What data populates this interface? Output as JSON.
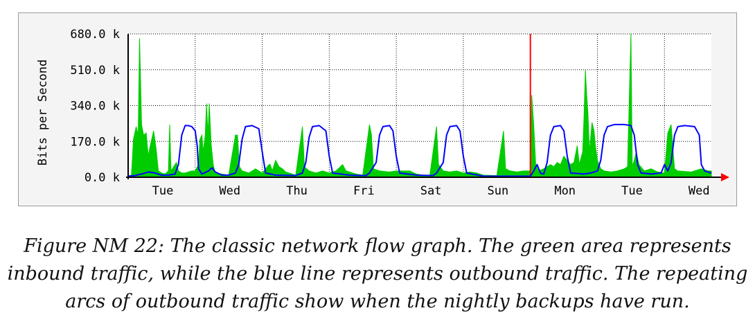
{
  "chart_data": {
    "type": "area",
    "title": "",
    "xlabel": "",
    "ylabel": "Bits per Second",
    "ylim": [
      0,
      680000
    ],
    "y_ticks": [
      {
        "value": 0,
        "label": "0.0 k"
      },
      {
        "value": 170000,
        "label": "170.0 k"
      },
      {
        "value": 340000,
        "label": "340.0 k"
      },
      {
        "value": 510000,
        "label": "510.0 k"
      },
      {
        "value": 680000,
        "label": "680.0 k"
      }
    ],
    "x_unit": "days",
    "xlim": [
      0,
      8.7
    ],
    "x_ticks": [
      "Tue",
      "Wed",
      "Thu",
      "Fri",
      "Sat",
      "Sun",
      "Mon",
      "Tue",
      "Wed"
    ],
    "grid": true,
    "marker_line": {
      "x": 6,
      "color": "#ff0000"
    },
    "series": [
      {
        "color": "#00cc00",
        "style": "area",
        "points": [
          [
            0.0,
            4000
          ],
          [
            0.05,
            10000
          ],
          [
            0.08,
            180000
          ],
          [
            0.12,
            240000
          ],
          [
            0.15,
            200000
          ],
          [
            0.17,
            660000
          ],
          [
            0.2,
            250000
          ],
          [
            0.23,
            200000
          ],
          [
            0.27,
            210000
          ],
          [
            0.3,
            100000
          ],
          [
            0.33,
            150000
          ],
          [
            0.38,
            220000
          ],
          [
            0.42,
            130000
          ],
          [
            0.45,
            30000
          ],
          [
            0.5,
            20000
          ],
          [
            0.55,
            15000
          ],
          [
            0.6,
            30000
          ],
          [
            0.62,
            250000
          ],
          [
            0.64,
            30000
          ],
          [
            0.7,
            60000
          ],
          [
            0.72,
            70000
          ],
          [
            0.75,
            30000
          ],
          [
            0.8,
            20000
          ],
          [
            0.85,
            20000
          ],
          [
            0.9,
            25000
          ],
          [
            0.95,
            30000
          ],
          [
            1.0,
            30000
          ],
          [
            1.05,
            60000
          ],
          [
            1.07,
            180000
          ],
          [
            1.1,
            200000
          ],
          [
            1.12,
            120000
          ],
          [
            1.15,
            200000
          ],
          [
            1.17,
            350000
          ],
          [
            1.19,
            200000
          ],
          [
            1.21,
            350000
          ],
          [
            1.24,
            150000
          ],
          [
            1.27,
            60000
          ],
          [
            1.3,
            20000
          ],
          [
            1.4,
            15000
          ],
          [
            1.5,
            10000
          ],
          [
            1.6,
            200000
          ],
          [
            1.63,
            200000
          ],
          [
            1.66,
            50000
          ],
          [
            1.7,
            30000
          ],
          [
            1.8,
            20000
          ],
          [
            1.9,
            40000
          ],
          [
            1.95,
            30000
          ],
          [
            2.0,
            20000
          ],
          [
            2.1,
            60000
          ],
          [
            2.12,
            60000
          ],
          [
            2.15,
            30000
          ],
          [
            2.2,
            80000
          ],
          [
            2.25,
            50000
          ],
          [
            2.3,
            40000
          ],
          [
            2.35,
            25000
          ],
          [
            2.5,
            10000
          ],
          [
            2.6,
            240000
          ],
          [
            2.63,
            50000
          ],
          [
            2.7,
            30000
          ],
          [
            2.8,
            20000
          ],
          [
            2.9,
            30000
          ],
          [
            3.0,
            20000
          ],
          [
            3.1,
            30000
          ],
          [
            3.2,
            60000
          ],
          [
            3.25,
            30000
          ],
          [
            3.4,
            15000
          ],
          [
            3.5,
            10000
          ],
          [
            3.6,
            250000
          ],
          [
            3.63,
            200000
          ],
          [
            3.66,
            40000
          ],
          [
            3.75,
            30000
          ],
          [
            3.9,
            25000
          ],
          [
            4.0,
            30000
          ],
          [
            4.1,
            30000
          ],
          [
            4.2,
            30000
          ],
          [
            4.3,
            15000
          ],
          [
            4.4,
            10000
          ],
          [
            4.5,
            8000
          ],
          [
            4.6,
            240000
          ],
          [
            4.63,
            60000
          ],
          [
            4.7,
            30000
          ],
          [
            4.8,
            25000
          ],
          [
            4.9,
            30000
          ],
          [
            5.0,
            20000
          ],
          [
            5.1,
            25000
          ],
          [
            5.2,
            20000
          ],
          [
            5.3,
            10000
          ],
          [
            5.5,
            8000
          ],
          [
            5.6,
            220000
          ],
          [
            5.63,
            40000
          ],
          [
            5.7,
            30000
          ],
          [
            5.8,
            25000
          ],
          [
            5.9,
            30000
          ],
          [
            6.0,
            30000
          ],
          [
            6.02,
            390000
          ],
          [
            6.05,
            250000
          ],
          [
            6.08,
            60000
          ],
          [
            6.12,
            30000
          ],
          [
            6.2,
            40000
          ],
          [
            6.3,
            60000
          ],
          [
            6.35,
            50000
          ],
          [
            6.4,
            70000
          ],
          [
            6.45,
            60000
          ],
          [
            6.5,
            100000
          ],
          [
            6.55,
            80000
          ],
          [
            6.6,
            60000
          ],
          [
            6.65,
            70000
          ],
          [
            6.7,
            150000
          ],
          [
            6.73,
            60000
          ],
          [
            6.78,
            120000
          ],
          [
            6.8,
            280000
          ],
          [
            6.82,
            510000
          ],
          [
            6.84,
            390000
          ],
          [
            6.86,
            300000
          ],
          [
            6.88,
            120000
          ],
          [
            6.92,
            260000
          ],
          [
            6.95,
            220000
          ],
          [
            6.97,
            150000
          ],
          [
            7.0,
            80000
          ],
          [
            7.05,
            40000
          ],
          [
            7.1,
            30000
          ],
          [
            7.2,
            25000
          ],
          [
            7.3,
            30000
          ],
          [
            7.4,
            40000
          ],
          [
            7.45,
            50000
          ],
          [
            7.5,
            680000
          ],
          [
            7.52,
            50000
          ],
          [
            7.55,
            80000
          ],
          [
            7.58,
            120000
          ],
          [
            7.62,
            60000
          ],
          [
            7.7,
            30000
          ],
          [
            7.8,
            40000
          ],
          [
            7.9,
            25000
          ],
          [
            8.0,
            20000
          ],
          [
            8.05,
            210000
          ],
          [
            8.1,
            250000
          ],
          [
            8.15,
            40000
          ],
          [
            8.2,
            30000
          ],
          [
            8.4,
            25000
          ],
          [
            8.55,
            40000
          ],
          [
            8.65,
            30000
          ],
          [
            8.7,
            30000
          ]
        ]
      },
      {
        "color": "#0000ff",
        "style": "line",
        "points": [
          [
            0.0,
            5000
          ],
          [
            0.1,
            8000
          ],
          [
            0.2,
            15000
          ],
          [
            0.3,
            25000
          ],
          [
            0.4,
            20000
          ],
          [
            0.5,
            10000
          ],
          [
            0.6,
            10000
          ],
          [
            0.7,
            15000
          ],
          [
            0.75,
            60000
          ],
          [
            0.8,
            200000
          ],
          [
            0.85,
            245000
          ],
          [
            0.9,
            245000
          ],
          [
            0.95,
            240000
          ],
          [
            1.0,
            220000
          ],
          [
            1.03,
            150000
          ],
          [
            1.05,
            40000
          ],
          [
            1.1,
            15000
          ],
          [
            1.2,
            30000
          ],
          [
            1.25,
            45000
          ],
          [
            1.3,
            25000
          ],
          [
            1.4,
            10000
          ],
          [
            1.5,
            10000
          ],
          [
            1.6,
            20000
          ],
          [
            1.65,
            60000
          ],
          [
            1.7,
            180000
          ],
          [
            1.75,
            240000
          ],
          [
            1.85,
            245000
          ],
          [
            1.95,
            230000
          ],
          [
            2.0,
            120000
          ],
          [
            2.05,
            20000
          ],
          [
            2.2,
            10000
          ],
          [
            2.5,
            8000
          ],
          [
            2.6,
            20000
          ],
          [
            2.65,
            70000
          ],
          [
            2.7,
            190000
          ],
          [
            2.75,
            240000
          ],
          [
            2.85,
            245000
          ],
          [
            2.95,
            220000
          ],
          [
            3.0,
            100000
          ],
          [
            3.05,
            20000
          ],
          [
            3.3,
            10000
          ],
          [
            3.55,
            8000
          ],
          [
            3.6,
            20000
          ],
          [
            3.7,
            70000
          ],
          [
            3.75,
            200000
          ],
          [
            3.8,
            240000
          ],
          [
            3.9,
            245000
          ],
          [
            3.95,
            220000
          ],
          [
            4.0,
            100000
          ],
          [
            4.05,
            20000
          ],
          [
            4.3,
            10000
          ],
          [
            4.55,
            8000
          ],
          [
            4.6,
            20000
          ],
          [
            4.7,
            70000
          ],
          [
            4.75,
            200000
          ],
          [
            4.8,
            240000
          ],
          [
            4.9,
            245000
          ],
          [
            4.95,
            220000
          ],
          [
            5.0,
            100000
          ],
          [
            5.05,
            20000
          ],
          [
            5.3,
            5000
          ],
          [
            5.6,
            5000
          ],
          [
            5.7,
            5000
          ],
          [
            6.0,
            5000
          ],
          [
            6.05,
            30000
          ],
          [
            6.1,
            60000
          ],
          [
            6.15,
            20000
          ],
          [
            6.2,
            15000
          ],
          [
            6.25,
            70000
          ],
          [
            6.3,
            200000
          ],
          [
            6.35,
            240000
          ],
          [
            6.45,
            245000
          ],
          [
            6.5,
            220000
          ],
          [
            6.55,
            100000
          ],
          [
            6.6,
            20000
          ],
          [
            6.8,
            15000
          ],
          [
            6.9,
            20000
          ],
          [
            7.0,
            30000
          ],
          [
            7.05,
            80000
          ],
          [
            7.1,
            200000
          ],
          [
            7.15,
            240000
          ],
          [
            7.25,
            250000
          ],
          [
            7.4,
            250000
          ],
          [
            7.5,
            245000
          ],
          [
            7.55,
            200000
          ],
          [
            7.6,
            60000
          ],
          [
            7.65,
            20000
          ],
          [
            7.8,
            15000
          ],
          [
            7.95,
            20000
          ],
          [
            8.0,
            60000
          ],
          [
            8.05,
            30000
          ],
          [
            8.1,
            70000
          ],
          [
            8.15,
            200000
          ],
          [
            8.2,
            240000
          ],
          [
            8.3,
            245000
          ],
          [
            8.45,
            240000
          ],
          [
            8.52,
            200000
          ],
          [
            8.55,
            60000
          ],
          [
            8.6,
            30000
          ],
          [
            8.7,
            20000
          ]
        ]
      }
    ]
  },
  "caption_lines": [
    "Figure NM 22: The classic network flow graph. The green area represents",
    "inbound traffic, while the blue line represents outbound traffic. The repeating",
    "arcs of outbound traffic show when the nightly backups have run."
  ]
}
